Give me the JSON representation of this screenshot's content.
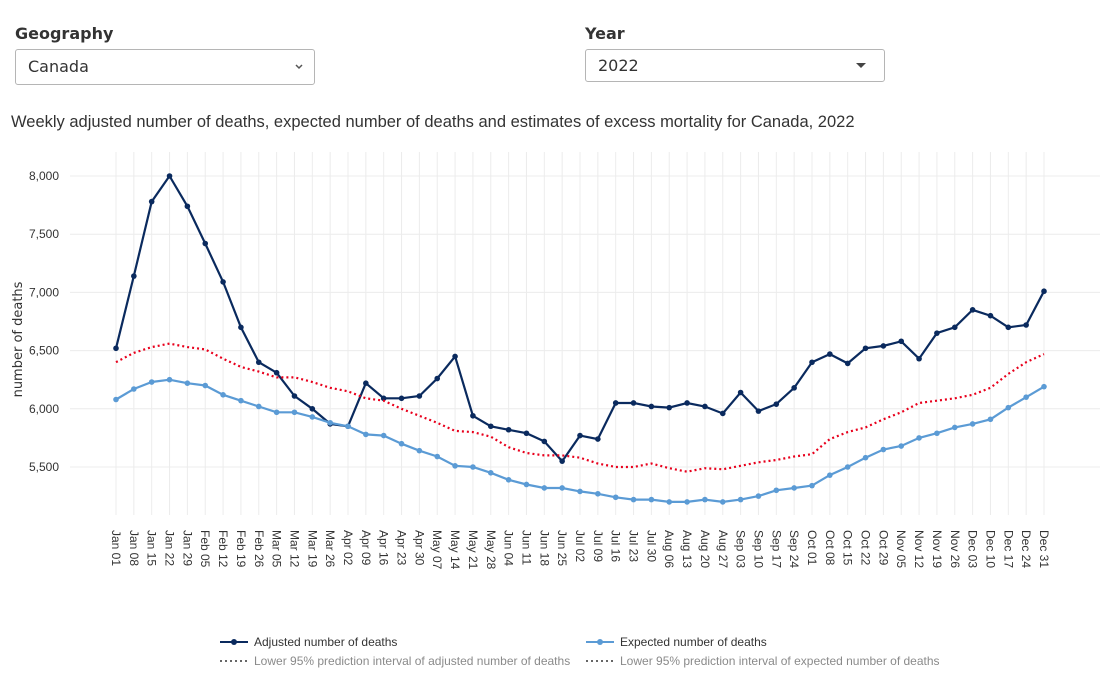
{
  "filters": {
    "geography_label": "Geography",
    "geography_value": "Canada",
    "year_label": "Year",
    "year_value": "2022"
  },
  "icons": {
    "geography_caret": "chevron-down-icon",
    "year_caret": "triangle-down-icon"
  },
  "chart_data": {
    "type": "line",
    "title": "Weekly adjusted number of deaths, expected number of deaths and estimates of excess mortality for Canada, 2022",
    "xlabel": "",
    "ylabel": "number of deaths",
    "ylim": [
      5000,
      8200
    ],
    "yticks": [
      5500,
      6000,
      6500,
      7000,
      7500,
      8000
    ],
    "ytick_labels": [
      "5,500",
      "6,000",
      "6,500",
      "7,000",
      "7,500",
      "8,000"
    ],
    "grid": true,
    "legend_position": "bottom",
    "categories": [
      "Jan 01",
      "Jan 08",
      "Jan 15",
      "Jan 22",
      "Jan 29",
      "Feb 05",
      "Feb 12",
      "Feb 19",
      "Feb 26",
      "Mar 05",
      "Mar 12",
      "Mar 19",
      "Mar 26",
      "Apr 02",
      "Apr 09",
      "Apr 16",
      "Apr 23",
      "Apr 30",
      "May 07",
      "May 14",
      "May 21",
      "May 28",
      "Jun 04",
      "Jun 11",
      "Jun 18",
      "Jun 25",
      "Jul 02",
      "Jul 09",
      "Jul 16",
      "Jul 23",
      "Jul 30",
      "Aug 06",
      "Aug 13",
      "Aug 20",
      "Aug 27",
      "Sep 03",
      "Sep 10",
      "Sep 17",
      "Sep 24",
      "Oct 01",
      "Oct 08",
      "Oct 15",
      "Oct 22",
      "Oct 29",
      "Nov 05",
      "Nov 12",
      "Nov 19",
      "Nov 26",
      "Dec 03",
      "Dec 10",
      "Dec 17",
      "Dec 24",
      "Dec 31"
    ],
    "series": [
      {
        "name": "Adjusted number of deaths",
        "color": "#0a2a5e",
        "style": "solid-markers",
        "values": [
          6520,
          7140,
          7780,
          8000,
          7740,
          7420,
          7090,
          6700,
          6400,
          6310,
          6110,
          6000,
          5870,
          5850,
          6220,
          6090,
          6090,
          6110,
          6260,
          6450,
          5940,
          5850,
          5820,
          5790,
          5720,
          5550,
          5770,
          5740,
          6050,
          6050,
          6020,
          6010,
          6050,
          6020,
          5960,
          6140,
          5980,
          6040,
          6180,
          6400,
          6470,
          6390,
          6520,
          6540,
          6580,
          6430,
          6650,
          6700,
          6850,
          6800,
          6700,
          6720,
          7010
        ]
      },
      {
        "name": "Expected number of deaths",
        "color": "#5b9bd5",
        "style": "solid-markers",
        "values": [
          6080,
          6170,
          6230,
          6250,
          6220,
          6200,
          6120,
          6070,
          6020,
          5970,
          5970,
          5930,
          5880,
          5850,
          5780,
          5770,
          5700,
          5640,
          5590,
          5510,
          5500,
          5450,
          5390,
          5350,
          5320,
          5320,
          5290,
          5270,
          5240,
          5220,
          5220,
          5200,
          5200,
          5220,
          5200,
          5220,
          5250,
          5300,
          5320,
          5340,
          5430,
          5500,
          5580,
          5650,
          5680,
          5750,
          5790,
          5840,
          5870,
          5910,
          6010,
          6100,
          6190
        ]
      },
      {
        "name": "Lower 95% prediction interval of adjusted number of deaths",
        "color": "#e8001c",
        "style": "dotted",
        "values": [
          6400,
          6480,
          6530,
          6560,
          6530,
          6510,
          6430,
          6360,
          6320,
          6270,
          6270,
          6230,
          6180,
          6150,
          6090,
          6070,
          6000,
          5940,
          5880,
          5810,
          5800,
          5760,
          5670,
          5620,
          5600,
          5600,
          5580,
          5530,
          5500,
          5500,
          5530,
          5490,
          5460,
          5490,
          5480,
          5510,
          5540,
          5560,
          5590,
          5610,
          5740,
          5800,
          5840,
          5910,
          5970,
          6050,
          6070,
          6090,
          6120,
          6180,
          6300,
          6400,
          6470
        ]
      }
    ],
    "legend": [
      {
        "label": "Adjusted number of deaths",
        "color": "#0a2a5e",
        "symbol": "line-marker"
      },
      {
        "label": "Expected number of deaths",
        "color": "#5b9bd5",
        "symbol": "line-marker"
      },
      {
        "label": "Lower 95% prediction interval of adjusted number of deaths",
        "color": "#666666",
        "symbol": "dotted",
        "muted": true
      },
      {
        "label": "Lower 95% prediction interval of expected number of deaths",
        "color": "#666666",
        "symbol": "dotted",
        "muted": true
      }
    ]
  }
}
